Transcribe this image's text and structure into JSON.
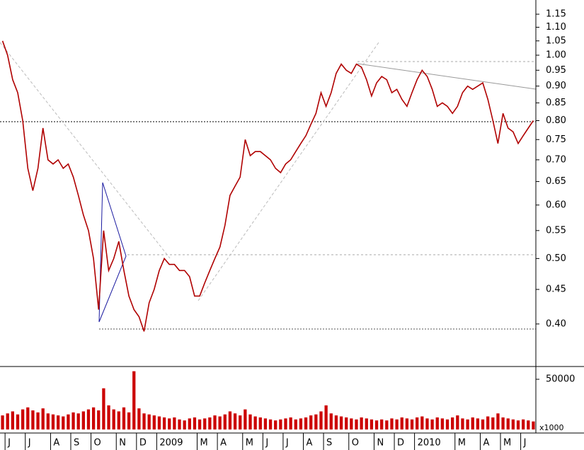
{
  "chart_data": [
    {
      "type": "line",
      "log_scale": true,
      "color": "#b00000",
      "grid": false,
      "categories": [
        null,
        "J",
        null,
        null,
        null,
        "J",
        null,
        null,
        null,
        null,
        "A",
        null,
        null,
        null,
        "S",
        null,
        null,
        null,
        "O",
        null,
        null,
        null,
        null,
        "N",
        null,
        null,
        null,
        "D",
        null,
        null,
        null,
        "2009",
        null,
        null,
        null,
        null,
        null,
        null,
        null,
        "M",
        null,
        null,
        null,
        "A",
        null,
        null,
        null,
        null,
        "M",
        null,
        null,
        null,
        "J",
        null,
        null,
        null,
        "J",
        null,
        null,
        null,
        "A",
        null,
        null,
        null,
        "S",
        null,
        null,
        null,
        null,
        "O",
        null,
        null,
        null,
        null,
        "N",
        null,
        null,
        null,
        "D",
        null,
        null,
        null,
        "2010",
        null,
        null,
        null,
        null,
        null,
        null,
        null,
        "M",
        null,
        null,
        null,
        null,
        "A",
        null,
        null,
        null,
        "M",
        null,
        null,
        null,
        "J",
        null,
        null
      ],
      "values": [
        1.05,
        1.0,
        0.92,
        0.88,
        0.8,
        0.68,
        0.63,
        0.68,
        0.78,
        0.7,
        0.69,
        0.7,
        0.68,
        0.69,
        0.66,
        0.62,
        0.58,
        0.55,
        0.5,
        0.42,
        0.55,
        0.48,
        0.5,
        0.53,
        0.48,
        0.44,
        0.42,
        0.41,
        0.39,
        0.43,
        0.45,
        0.48,
        0.5,
        0.49,
        0.49,
        0.48,
        0.48,
        0.47,
        0.44,
        0.44,
        0.46,
        0.48,
        0.5,
        0.52,
        0.56,
        0.62,
        0.64,
        0.66,
        0.75,
        0.71,
        0.72,
        0.72,
        0.71,
        0.7,
        0.68,
        0.67,
        0.69,
        0.7,
        0.72,
        0.74,
        0.76,
        0.79,
        0.82,
        0.88,
        0.84,
        0.88,
        0.94,
        0.97,
        0.95,
        0.94,
        0.97,
        0.96,
        0.92,
        0.87,
        0.91,
        0.93,
        0.92,
        0.88,
        0.89,
        0.86,
        0.84,
        0.88,
        0.92,
        0.95,
        0.93,
        0.89,
        0.84,
        0.85,
        0.84,
        0.82,
        0.84,
        0.88,
        0.9,
        0.89,
        0.9,
        0.91,
        0.86,
        0.8,
        0.74,
        0.82,
        0.78,
        0.77,
        0.74,
        0.76,
        0.78,
        0.8
      ],
      "ylim": [
        0.346,
        1.207
      ],
      "yticks": [
        {
          "value": 0.4,
          "label": "0.40"
        },
        0.45,
        {
          "value": 0.5,
          "label": "0.50"
        },
        0.55,
        {
          "value": 0.6,
          "label": "0.60"
        },
        0.65,
        {
          "value": 0.7,
          "label": "0.70"
        },
        0.75,
        {
          "value": 0.8,
          "label": "0.80"
        },
        0.85,
        {
          "value": 0.9,
          "label": "0.90"
        },
        0.95,
        {
          "value": 1.0,
          "label": "1.00"
        },
        1.05,
        {
          "value": 1.1,
          "label": "1.10"
        },
        1.15
      ]
    },
    {
      "type": "bar",
      "color": "#cc0000",
      "unit_label": "x1000",
      "values": [
        14000,
        16000,
        18000,
        15000,
        20000,
        22000,
        19000,
        17000,
        21000,
        16000,
        15000,
        14000,
        13000,
        15000,
        17000,
        16000,
        18000,
        20000,
        22000,
        19000,
        41000,
        24000,
        20000,
        18000,
        22000,
        17000,
        58000,
        21000,
        16000,
        15000,
        14000,
        13000,
        12000,
        11000,
        12000,
        10000,
        9000,
        11000,
        12000,
        10000,
        11000,
        12000,
        14000,
        13000,
        15000,
        18000,
        16000,
        14000,
        20000,
        15000,
        13000,
        12000,
        11000,
        10000,
        9000,
        10000,
        11000,
        12000,
        10000,
        11000,
        12000,
        14000,
        15000,
        18000,
        24000,
        16000,
        14000,
        13000,
        12000,
        11000,
        10000,
        12000,
        11000,
        10000,
        9000,
        10000,
        9000,
        11000,
        10000,
        12000,
        11000,
        10000,
        12000,
        13000,
        11000,
        10000,
        12000,
        11000,
        10000,
        12000,
        14000,
        11000,
        10000,
        12000,
        11000,
        10000,
        13000,
        12000,
        16000,
        12000,
        11000,
        10000,
        9000,
        10000,
        9000,
        8000
      ],
      "ylim": [
        0,
        62700
      ],
      "yticks": [
        50000
      ]
    }
  ]
}
